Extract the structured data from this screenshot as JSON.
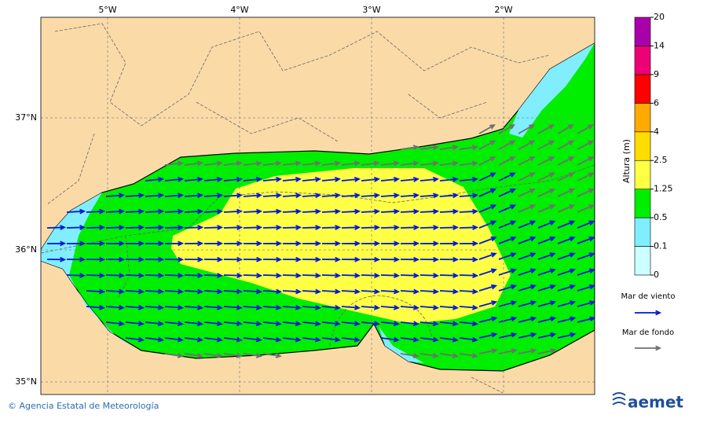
{
  "map": {
    "lon_labels": [
      "5°W",
      "4°W",
      "3°W",
      "2°W"
    ],
    "lat_labels": [
      "37°N",
      "36°N",
      "35°N"
    ]
  },
  "colorbar": {
    "title": "Altura (m)",
    "levels": [
      0,
      0.1,
      0.5,
      1.25,
      2.5,
      4,
      6,
      9,
      14,
      20
    ],
    "colors": [
      "#ccffff",
      "#80eeff",
      "#00ee00",
      "#ffff44",
      "#ffdd00",
      "#ffaa00",
      "#ff0000",
      "#ee0077",
      "#aa00aa"
    ]
  },
  "legend": [
    {
      "label": "Mar de viento",
      "color": "#0018d8"
    },
    {
      "label": "Mar de fondo",
      "color": "#707070"
    }
  ],
  "footer": {
    "credit": "© Agencia Estatal de Meteorología",
    "logo": "aemet"
  }
}
